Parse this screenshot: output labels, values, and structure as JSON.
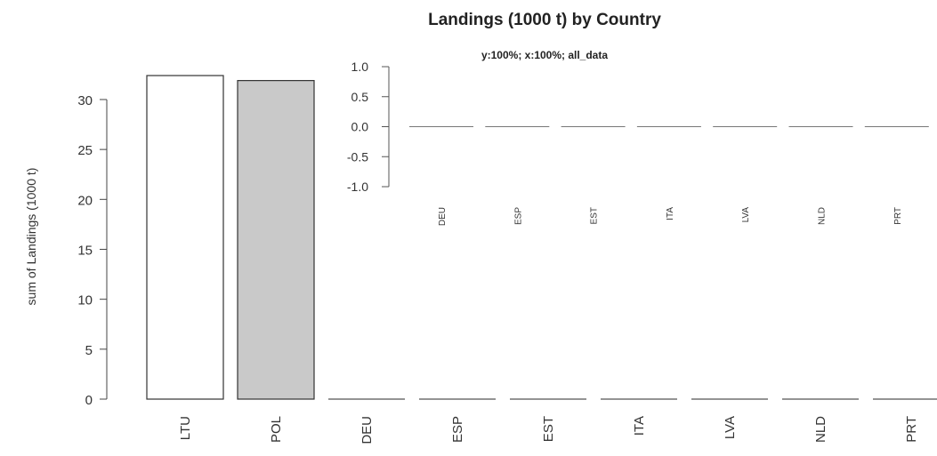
{
  "chart_data": [
    {
      "type": "bar",
      "title": "Landings (1000 t) by Country",
      "subtitle": "y:100%; x:100%; all_data",
      "xlabel": "",
      "ylabel": "sum of Landings (1000 t)",
      "categories": [
        "LTU",
        "POL",
        "DEU",
        "ESP",
        "EST",
        "ITA",
        "LVA",
        "NLD",
        "PRT"
      ],
      "values": [
        32.4,
        31.9,
        0,
        0,
        0,
        0,
        0,
        0,
        0
      ],
      "ylim": [
        0,
        32.4
      ],
      "yticks": [
        "0",
        "5",
        "10",
        "15",
        "20",
        "25",
        "30"
      ],
      "colors": [
        "#ffffff",
        "#c9c9c9",
        "#ffffff",
        "#ffffff",
        "#ffffff",
        "#ffffff",
        "#ffffff",
        "#ffffff",
        "#ffffff"
      ],
      "grid": false
    },
    {
      "type": "bar",
      "title": "",
      "categories": [
        "DEU",
        "ESP",
        "EST",
        "ITA",
        "LVA",
        "NLD",
        "PRT"
      ],
      "values": [
        0,
        0,
        0,
        0,
        0,
        0,
        0
      ],
      "ylim": [
        -1.0,
        1.0
      ],
      "yticks": [
        "1.0",
        "0.5",
        "0.0",
        "-0.5",
        "-1.0"
      ],
      "grid": false
    }
  ]
}
